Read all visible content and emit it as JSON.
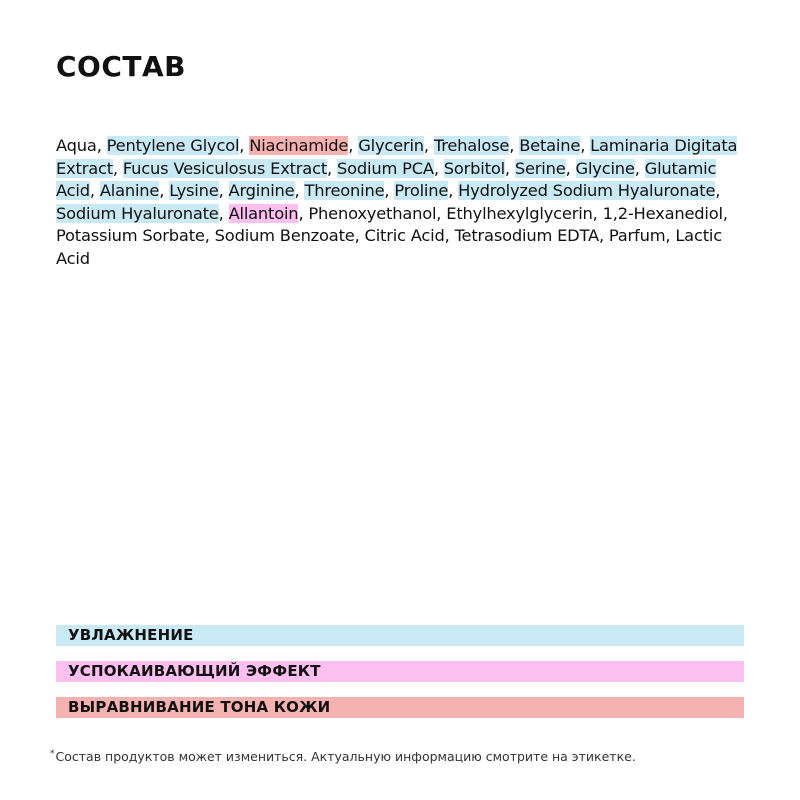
{
  "title": "СОСТАВ",
  "colors": {
    "hydration": "#c9eaf5",
    "calming": "#fcbff0",
    "tone": "#f6b1b1"
  },
  "ingredients": [
    {
      "name": "Aqua",
      "type": ""
    },
    {
      "name": "Pentylene Glycol",
      "type": "hydration"
    },
    {
      "name": "Niacinamide",
      "type": "tone"
    },
    {
      "name": "Glycerin",
      "type": "hydration"
    },
    {
      "name": "Trehalose",
      "type": "hydration"
    },
    {
      "name": "Betaine",
      "type": "hydration"
    },
    {
      "name": "Laminaria Digitata Extract",
      "type": "hydration"
    },
    {
      "name": "Fucus Vesiculosus Extract",
      "type": "hydration"
    },
    {
      "name": "Sodium PCA",
      "type": "hydration"
    },
    {
      "name": "Sorbitol",
      "type": "hydration"
    },
    {
      "name": "Serine",
      "type": "hydration"
    },
    {
      "name": "Glycine",
      "type": "hydration"
    },
    {
      "name": "Glutamic Acid",
      "type": "hydration"
    },
    {
      "name": "Alanine",
      "type": "hydration"
    },
    {
      "name": "Lysine",
      "type": "hydration"
    },
    {
      "name": "Arginine",
      "type": "hydration"
    },
    {
      "name": "Threonine",
      "type": "hydration"
    },
    {
      "name": "Proline",
      "type": "hydration"
    },
    {
      "name": "Hydrolyzed Sodium Hyaluronate",
      "type": "hydration"
    },
    {
      "name": "Sodium Hyaluronate",
      "type": "hydration"
    },
    {
      "name": "Allantoin",
      "type": "calming"
    },
    {
      "name": "Phenoxyethanol",
      "type": ""
    },
    {
      "name": "Ethylhexylglycerin",
      "type": ""
    },
    {
      "name": "1,2-Hexanediol",
      "type": ""
    },
    {
      "name": "Potassium Sorbate",
      "type": ""
    },
    {
      "name": "Sodium Benzoate",
      "type": ""
    },
    {
      "name": "Citric Acid",
      "type": ""
    },
    {
      "name": "Tetrasodium EDTA",
      "type": ""
    },
    {
      "name": "Parfum",
      "type": ""
    },
    {
      "name": "Lactic Acid",
      "type": ""
    }
  ],
  "legend": {
    "hydration": "УВЛАЖНЕНИЕ",
    "calming": "УСПОКАИВАЮЩИЙ ЭФФЕКТ",
    "tone": "ВЫРАВНИВАНИЕ ТОНА КОЖИ"
  },
  "note": {
    "mark": "*",
    "text": "Состав продуктов может измениться. Актуальную информацию смотрите на этикетке."
  }
}
